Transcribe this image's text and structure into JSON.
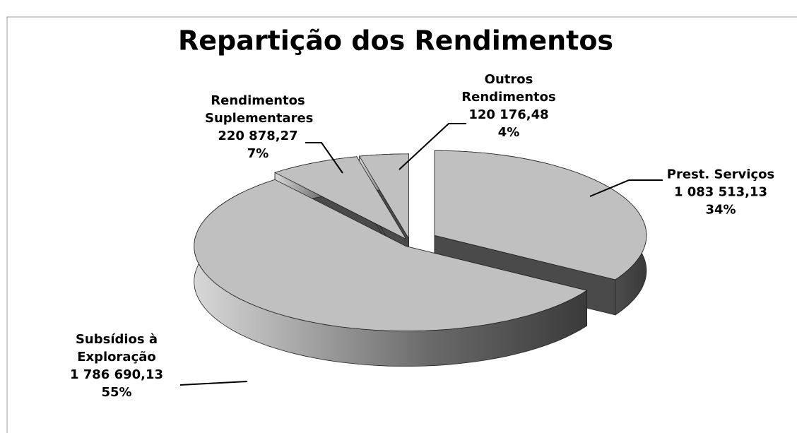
{
  "chart_data": {
    "type": "pie3d",
    "title": "Repartição dos Rendimentos",
    "categories": [
      "Prest. Serviços",
      "Subsídios à Exploração",
      "Rendimentos Suplementares",
      "Outros Rendimentos"
    ],
    "values": [
      1083513.13,
      1786690.13,
      220878.27,
      120176.48
    ],
    "value_labels": [
      "1 083 513,13",
      "1 786 690,13",
      "220 878,27",
      "120 176,48"
    ],
    "percents": [
      34,
      55,
      7,
      4
    ],
    "percent_labels": [
      "34%",
      "55%",
      "7%",
      "4%"
    ],
    "color": "#c0c0c0"
  }
}
